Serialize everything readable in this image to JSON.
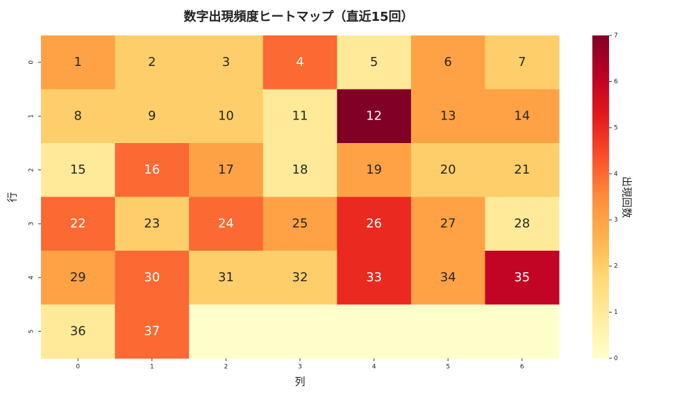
{
  "chart_data": {
    "type": "heatmap",
    "title": "数字出現頻度ヒートマップ（直近15回）",
    "xlabel": "列",
    "ylabel": "行",
    "categories": [
      0,
      1,
      2,
      3,
      4,
      5,
      6
    ],
    "rows": [
      0,
      1,
      2,
      3,
      4,
      5
    ],
    "values": [
      [
        3,
        2,
        2,
        4,
        1,
        3,
        2
      ],
      [
        2,
        2,
        2,
        1,
        7,
        3,
        3
      ],
      [
        1,
        4,
        3,
        1,
        3,
        2,
        2
      ],
      [
        4,
        2,
        4,
        3,
        5,
        3,
        1
      ],
      [
        3,
        4,
        2,
        2,
        5,
        3,
        6
      ],
      [
        1,
        4,
        0,
        0,
        0,
        0,
        0
      ]
    ],
    "annotations": [
      [
        1,
        2,
        3,
        4,
        5,
        6,
        7
      ],
      [
        8,
        9,
        10,
        11,
        12,
        13,
        14
      ],
      [
        15,
        16,
        17,
        18,
        19,
        20,
        21
      ],
      [
        22,
        23,
        24,
        25,
        26,
        27,
        28
      ],
      [
        29,
        30,
        31,
        32,
        33,
        34,
        35
      ],
      [
        36,
        37,
        null,
        null,
        null,
        null,
        null
      ]
    ],
    "colormap": "YlOrRd",
    "colorbar_label": "出現回数",
    "clim": [
      0,
      7
    ],
    "cticks": [
      0,
      1,
      2,
      3,
      4,
      5,
      6,
      7
    ]
  }
}
